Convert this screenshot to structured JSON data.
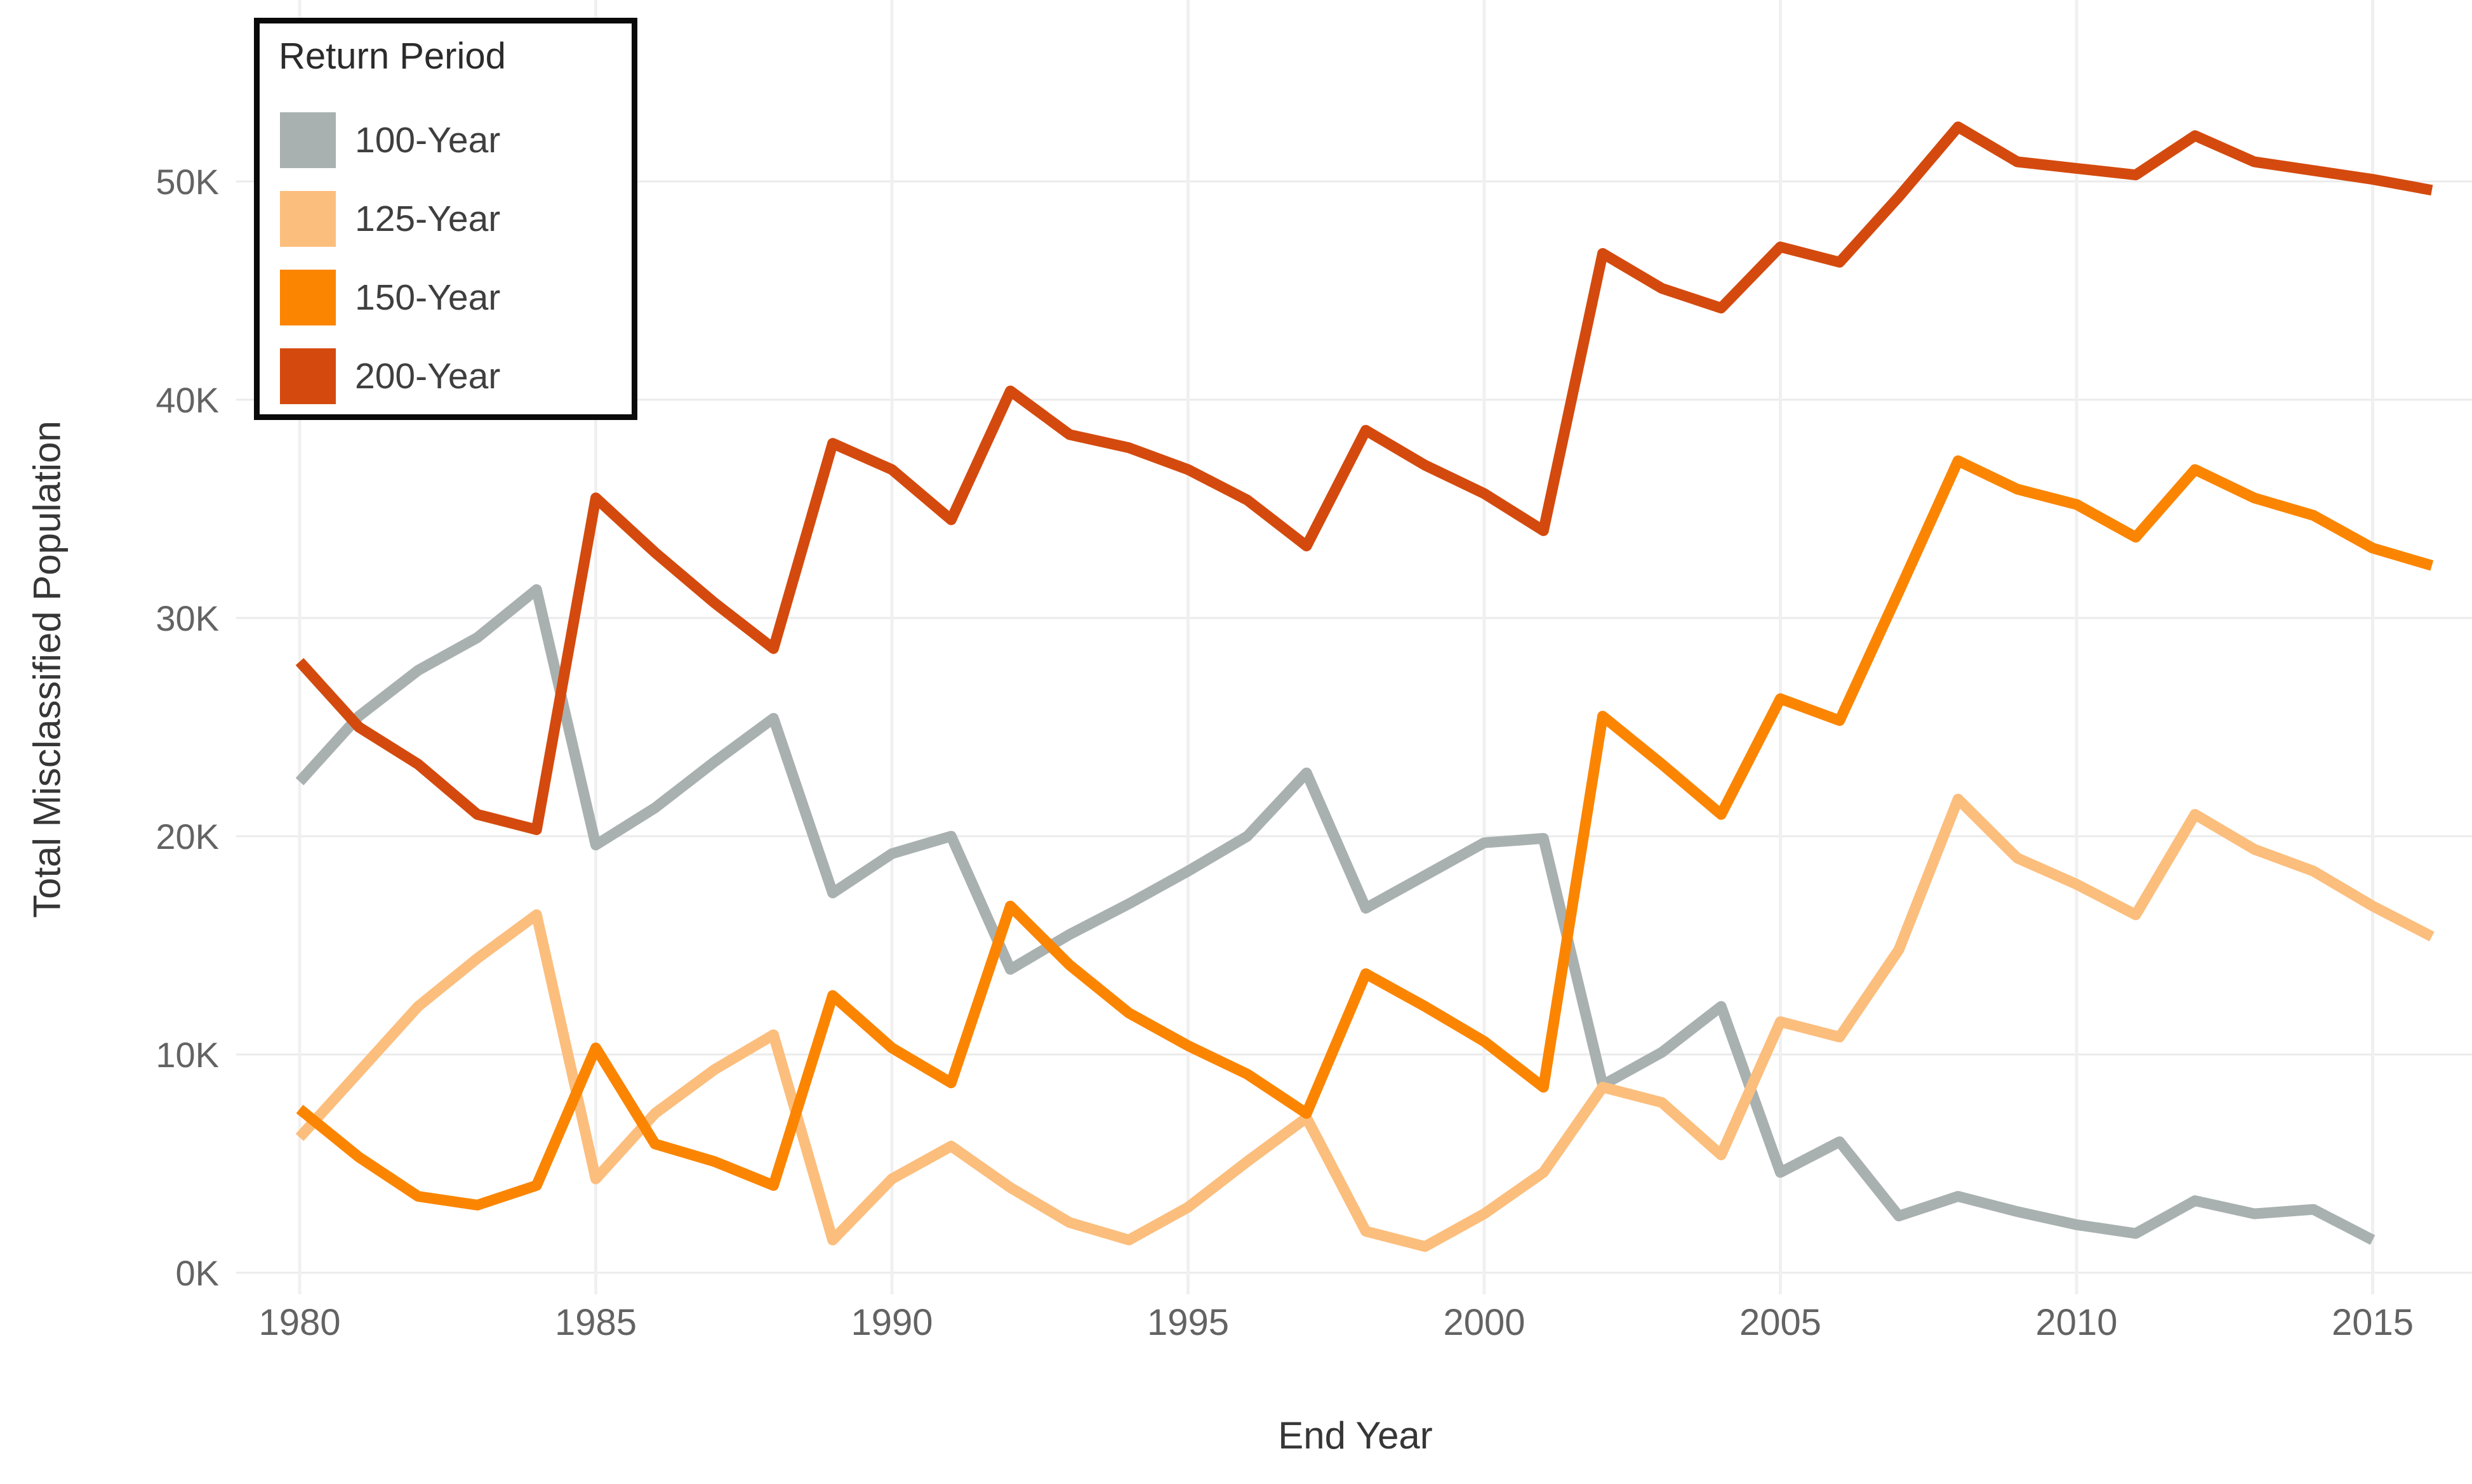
{
  "axes": {
    "x": {
      "title": "End Year",
      "ticks": [
        "1980",
        "1985",
        "1990",
        "1995",
        "2000",
        "2005",
        "2010",
        "2015"
      ]
    },
    "y": {
      "title": "Total Misclassified Population",
      "ticks": [
        "0K",
        "10K",
        "20K",
        "30K",
        "40K",
        "50K"
      ]
    }
  },
  "legend": {
    "title": "Return Period",
    "items": [
      {
        "label": "100-Year",
        "color": "#a9b1b0"
      },
      {
        "label": "125-Year",
        "color": "#fcbe7d"
      },
      {
        "label": "150-Year",
        "color": "#fb8500"
      },
      {
        "label": "200-Year",
        "color": "#d44a0e"
      }
    ]
  },
  "colors": {
    "gridline_h": "#ebebeb",
    "gridline_v": "#f0f0f0",
    "tick_label": "#636363",
    "axis_title": "#363636",
    "legend_border": "#0a0a0a"
  },
  "chart_data": {
    "type": "line",
    "title": "",
    "xlabel": "End Year",
    "ylabel": "Total Misclassified Population",
    "unit": "thousands",
    "x": [
      1980,
      1981,
      1982,
      1983,
      1984,
      1985,
      1986,
      1987,
      1988,
      1989,
      1990,
      1991,
      1992,
      1993,
      1994,
      1995,
      1996,
      1997,
      1998,
      1999,
      2000,
      2001,
      2002,
      2003,
      2004,
      2005,
      2006,
      2007,
      2008,
      2009,
      2010,
      2011,
      2012,
      2013,
      2014,
      2015,
      2016
    ],
    "xlim": [
      1978.8,
      2016.7
    ],
    "ylim": [
      0,
      58
    ],
    "ytick_values": [
      0,
      10,
      20,
      30,
      40,
      50
    ],
    "xtick_values": [
      1980,
      1985,
      1990,
      1995,
      2000,
      2005,
      2010,
      2015
    ],
    "grid": true,
    "legend_position": "top-left",
    "series": [
      {
        "name": "100-Year",
        "color": "#a9b1b0",
        "values": [
          22.5,
          25.5,
          27.6,
          29.1,
          31.3,
          19.6,
          21.3,
          23.4,
          25.4,
          17.4,
          19.2,
          20.0,
          13.9,
          15.5,
          16.9,
          18.4,
          20.0,
          22.9,
          16.7,
          18.2,
          19.7,
          19.9,
          8.6,
          10.1,
          12.2,
          4.6,
          6.0,
          2.6,
          3.5,
          2.8,
          2.2,
          1.8,
          3.3,
          2.7,
          2.9,
          1.5,
          null
        ]
      },
      {
        "name": "125-Year",
        "color": "#fcbe7d",
        "values": [
          6.2,
          9.2,
          12.2,
          14.4,
          16.4,
          4.3,
          7.3,
          9.3,
          10.9,
          1.5,
          4.3,
          5.8,
          3.9,
          2.3,
          1.5,
          3.0,
          5.1,
          7.1,
          1.9,
          1.2,
          2.7,
          4.6,
          8.5,
          7.8,
          5.4,
          11.5,
          10.8,
          14.8,
          21.7,
          19.0,
          17.8,
          16.4,
          21.0,
          19.4,
          18.4,
          16.8,
          15.4
        ]
      },
      {
        "name": "150-Year",
        "color": "#fb8500",
        "values": [
          7.5,
          5.3,
          3.5,
          3.1,
          4.0,
          10.3,
          5.9,
          5.1,
          4.0,
          12.7,
          10.3,
          8.7,
          16.8,
          14.1,
          11.9,
          10.4,
          9.1,
          7.3,
          13.7,
          12.2,
          10.6,
          8.5,
          25.5,
          23.3,
          21.0,
          26.3,
          25.3,
          31.2,
          37.2,
          35.9,
          35.2,
          33.7,
          36.8,
          35.5,
          34.7,
          33.2,
          32.4
        ]
      },
      {
        "name": "200-Year",
        "color": "#d44a0e",
        "values": [
          28.0,
          25.0,
          23.3,
          21.0,
          20.3,
          35.5,
          33.0,
          30.7,
          28.6,
          38.0,
          36.8,
          34.5,
          40.4,
          38.4,
          37.8,
          36.8,
          35.4,
          33.3,
          38.6,
          37.0,
          35.7,
          34.0,
          46.7,
          45.1,
          44.2,
          47.0,
          46.3,
          49.3,
          52.5,
          50.9,
          50.6,
          50.3,
          52.1,
          50.9,
          50.5,
          50.1,
          49.6
        ]
      }
    ]
  }
}
